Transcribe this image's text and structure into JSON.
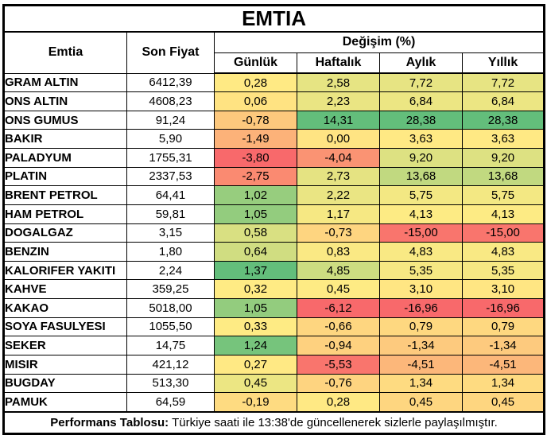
{
  "chart_data": {
    "type": "table",
    "title": "EMTIA",
    "commodity_header": "Emtia",
    "price_header": "Son Fiyat",
    "change_group_label": "Değişim (%)",
    "periods": [
      "Günlük",
      "Haftalık",
      "Aylık",
      "Yıllık"
    ],
    "rows": [
      {
        "name": "GRAM ALTIN",
        "price": "6412,39",
        "changes": [
          "0,28",
          "2,58",
          "7,72",
          "7,72"
        ]
      },
      {
        "name": "ONS ALTIN",
        "price": "4608,23",
        "changes": [
          "0,06",
          "2,23",
          "6,84",
          "6,84"
        ]
      },
      {
        "name": "ONS GUMUS",
        "price": "91,24",
        "changes": [
          "-0,78",
          "14,31",
          "28,38",
          "28,38"
        ]
      },
      {
        "name": "BAKIR",
        "price": "5,90",
        "changes": [
          "-1,49",
          "0,00",
          "3,63",
          "3,63"
        ]
      },
      {
        "name": "PALADYUM",
        "price": "1755,31",
        "changes": [
          "-3,80",
          "-4,04",
          "9,20",
          "9,20"
        ]
      },
      {
        "name": "PLATIN",
        "price": "2337,53",
        "changes": [
          "-2,75",
          "2,73",
          "13,68",
          "13,68"
        ]
      },
      {
        "name": "BRENT PETROL",
        "price": "64,41",
        "changes": [
          "1,02",
          "2,22",
          "5,75",
          "5,75"
        ]
      },
      {
        "name": "HAM PETROL",
        "price": "59,81",
        "changes": [
          "1,05",
          "1,17",
          "4,13",
          "4,13"
        ]
      },
      {
        "name": "DOGALGAZ",
        "price": "3,15",
        "changes": [
          "0,58",
          "-0,73",
          "-15,00",
          "-15,00"
        ]
      },
      {
        "name": "BENZIN",
        "price": "1,80",
        "changes": [
          "0,64",
          "0,83",
          "4,83",
          "4,83"
        ]
      },
      {
        "name": "KALORIFER YAKITI",
        "price": "2,24",
        "changes": [
          "1,37",
          "4,85",
          "5,35",
          "5,35"
        ]
      },
      {
        "name": "KAHVE",
        "price": "359,25",
        "changes": [
          "0,32",
          "0,45",
          "3,10",
          "3,10"
        ]
      },
      {
        "name": "KAKAO",
        "price": "5018,00",
        "changes": [
          "1,05",
          "-6,12",
          "-16,96",
          "-16,96"
        ]
      },
      {
        "name": "SOYA FASULYESI",
        "price": "1055,50",
        "changes": [
          "0,33",
          "-0,66",
          "0,79",
          "0,79"
        ]
      },
      {
        "name": "SEKER",
        "price": "14,75",
        "changes": [
          "1,24",
          "-0,94",
          "-1,34",
          "-1,34"
        ]
      },
      {
        "name": "MISIR",
        "price": "421,12",
        "changes": [
          "0,27",
          "-5,53",
          "-4,51",
          "-4,51"
        ]
      },
      {
        "name": "BUGDAY",
        "price": "513,30",
        "changes": [
          "0,45",
          "-0,76",
          "1,34",
          "1,34"
        ]
      },
      {
        "name": "PAMUK",
        "price": "64,59",
        "changes": [
          "-0,19",
          "0,28",
          "0,45",
          "0,45"
        ]
      }
    ],
    "heatmap": {
      "min_color": "#F8696B",
      "mid_color": "#FFEB84",
      "max_color": "#63BE7B"
    },
    "footer": {
      "label": "Performans Tablosu:",
      "text": " Türkiye saati ile 13:38'de güncellenerek sizlerle paylaşılmıştır."
    }
  }
}
